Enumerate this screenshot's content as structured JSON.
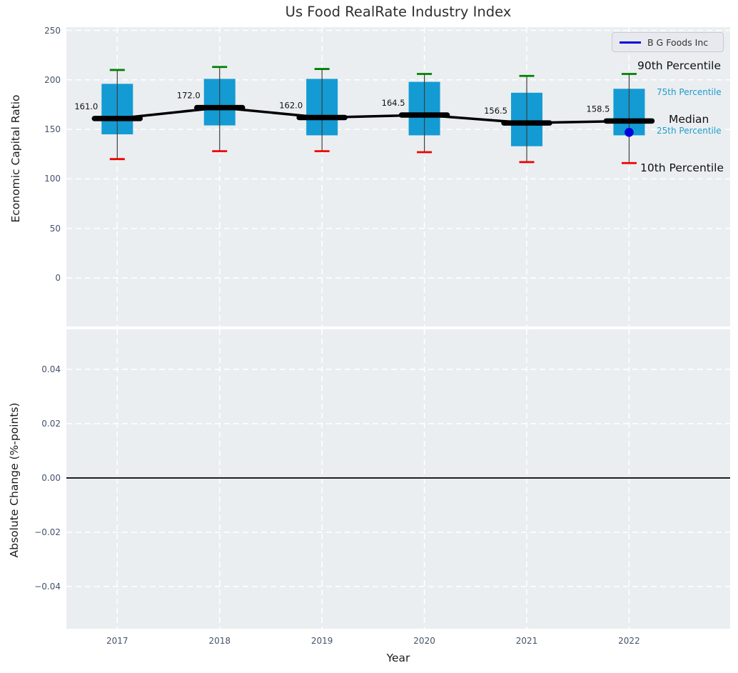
{
  "colors": {
    "axes_background": "#eaeef0",
    "grid": "#ffffff",
    "box_fill": "#149bd3",
    "p90_cap": "#008000",
    "p10_cap": "#f00000",
    "whisker": "#3f3f3f",
    "median_line": "#000000",
    "company_blue": "#0000dd",
    "percentile_small_label": "#1d9bcd",
    "tick_label": "#44536b"
  },
  "chart_data": [
    {
      "type": "boxplot",
      "title": "Us Food RealRate Industry Index",
      "xlabel": "Year",
      "ylabel": "Economic Capital Ratio",
      "categories": [
        "2017",
        "2018",
        "2019",
        "2020",
        "2021",
        "2022"
      ],
      "yticks": [
        250,
        200,
        150,
        100,
        50,
        0
      ],
      "ylim": [
        -49,
        253
      ],
      "grid": true,
      "legend": {
        "label": "B G Foods Inc",
        "position": "upper right"
      },
      "boxes": [
        {
          "year": "2017",
          "p10": 120,
          "p25": 145,
          "median": 161.0,
          "p75": 196,
          "p90": 210
        },
        {
          "year": "2018",
          "p10": 128,
          "p25": 154,
          "median": 172.0,
          "p75": 201,
          "p90": 213
        },
        {
          "year": "2019",
          "p10": 128,
          "p25": 144,
          "median": 162.0,
          "p75": 201,
          "p90": 211
        },
        {
          "year": "2020",
          "p10": 127,
          "p25": 144,
          "median": 164.5,
          "p75": 198,
          "p90": 206
        },
        {
          "year": "2021",
          "p10": 117,
          "p25": 133,
          "median": 156.5,
          "p75": 187,
          "p90": 204
        },
        {
          "year": "2022",
          "p10": 116,
          "p25": 144,
          "median": 158.5,
          "p75": 191,
          "p90": 206
        }
      ],
      "median_labels": [
        "161.0",
        "172.0",
        "162.0",
        "164.5",
        "156.5",
        "158.5"
      ],
      "company_series": {
        "name": "B G Foods Inc",
        "points": [
          {
            "x": "2022",
            "y": 147
          }
        ]
      },
      "annotations_right": [
        "90th Percentile",
        "75th Percentile",
        "Median",
        "25th Percentile",
        "10th Percentile"
      ]
    },
    {
      "type": "line",
      "title": "",
      "xlabel": "Year",
      "ylabel": "Absolute Change (%-points)",
      "categories": [
        "2017",
        "2018",
        "2019",
        "2020",
        "2021",
        "2022"
      ],
      "ytick_labels": [
        "0.04",
        "0.02",
        "0.00",
        "−0.02",
        "−0.04"
      ],
      "ytick_values": [
        0.04,
        0.02,
        0.0,
        -0.02,
        -0.04
      ],
      "ylim": [
        -0.055,
        0.055
      ],
      "grid": true,
      "zero_line": 0.0,
      "series": []
    }
  ]
}
